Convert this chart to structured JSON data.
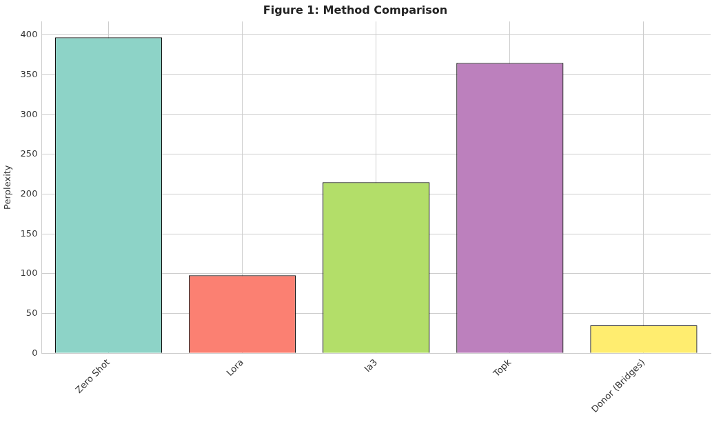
{
  "chart_data": {
    "type": "bar",
    "title": "Figure 1: Method Comparison",
    "ylabel": "Perplexity",
    "categories": [
      "Zero Shot",
      "Lora",
      "Ia3",
      "Topk",
      "Donor (Bridges)"
    ],
    "values": [
      397,
      98,
      215,
      365,
      35
    ],
    "colors": [
      "#8dd3c7",
      "#fb8072",
      "#b3de69",
      "#bc80bd",
      "#ffed6f"
    ],
    "ylim": [
      0,
      417
    ],
    "yticks": [
      0,
      50,
      100,
      150,
      200,
      250,
      300,
      350,
      400
    ],
    "grid": true
  }
}
